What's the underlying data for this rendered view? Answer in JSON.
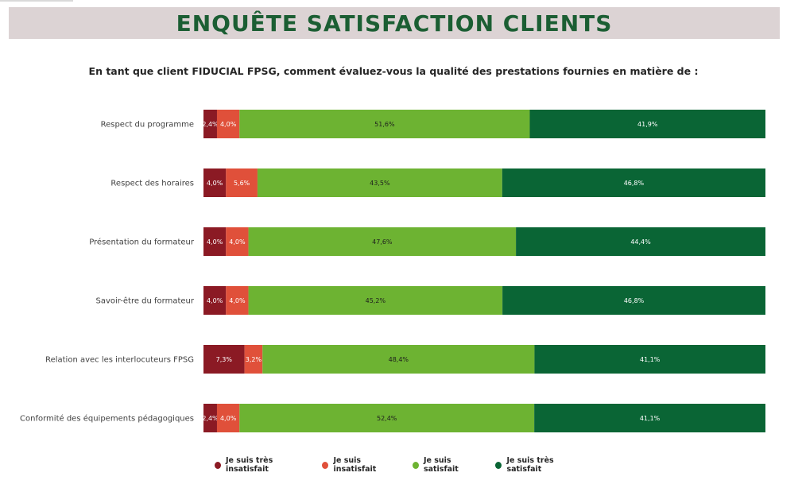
{
  "header": {
    "title": "ENQUÊTE SATISFACTION CLIENTS"
  },
  "subtitle": "En tant que client FIDUCIAL FPSG, comment évaluez-vous la qualité des prestations fournies en matière de :",
  "colors": {
    "banner_bg": "#dcd3d4",
    "title": "#1b5e33",
    "tres_insatisfait": "#8b1a24",
    "insatisfait": "#e0503a",
    "satisfait": "#6db332",
    "tres_satisfait": "#0a6535"
  },
  "chart_data": {
    "type": "bar",
    "orientation": "horizontal",
    "stacked": true,
    "percent_stacked": true,
    "categories": [
      "Respect du programme",
      "Respect des horaires",
      "Présentation du formateur",
      "Savoir-être du formateur",
      "Relation avec les interlocuteurs FPSG",
      "Conformité des équipements pédagogiques"
    ],
    "series": [
      {
        "name": "Je suis très insatisfait",
        "color": "#8b1a24",
        "values": [
          2.4,
          4.0,
          4.0,
          4.0,
          7.3,
          2.4
        ],
        "labels": [
          "2,4%",
          "4,0%",
          "4,0%",
          "4,0%",
          "7,3%",
          "2,4%"
        ]
      },
      {
        "name": "Je suis insatisfait",
        "color": "#e0503a",
        "values": [
          4.0,
          5.6,
          4.0,
          4.0,
          3.2,
          4.0
        ],
        "labels": [
          "4,0%",
          "5,6%",
          "4,0%",
          "4,0%",
          "3,2%",
          "4,0%"
        ]
      },
      {
        "name": "Je suis satisfait",
        "color": "#6db332",
        "values": [
          51.6,
          43.5,
          47.6,
          45.2,
          48.4,
          52.4
        ],
        "labels": [
          "51,6%",
          "43,5%",
          "47,6%",
          "45,2%",
          "48,4%",
          "52,4%"
        ]
      },
      {
        "name": "Je suis très satisfait",
        "color": "#0a6535",
        "values": [
          41.9,
          46.8,
          44.4,
          46.8,
          41.1,
          41.1
        ],
        "labels": [
          "41,9%",
          "46,8%",
          "44,4%",
          "46,8%",
          "41,1%",
          "41,1%"
        ]
      }
    ],
    "xlim": [
      0,
      100
    ],
    "grid": false,
    "legend_position": "bottom"
  }
}
